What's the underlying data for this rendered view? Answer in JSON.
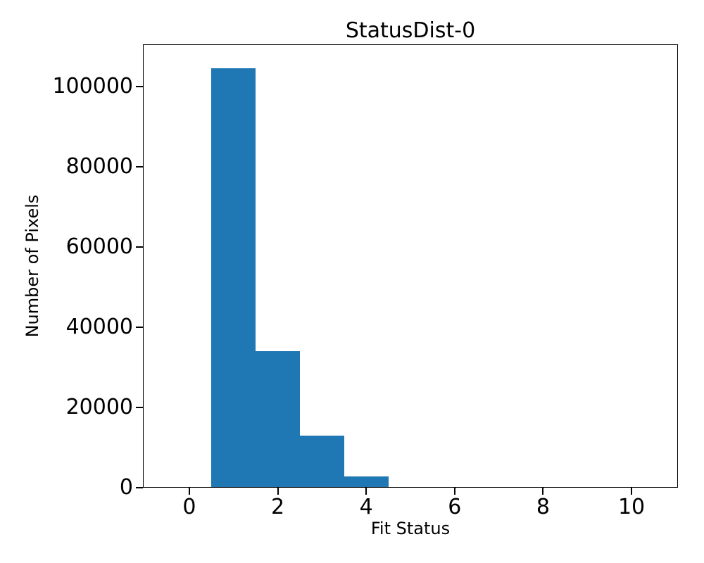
{
  "chart_data": {
    "type": "bar",
    "subtype": "histogram",
    "title": "StatusDist-0",
    "xlabel": "Fit Status",
    "ylabel": "Number of Pixels",
    "categories": [
      0,
      1,
      2,
      3,
      4,
      5,
      6,
      7,
      8,
      9,
      10
    ],
    "values": [
      0,
      104500,
      34000,
      13000,
      2800,
      0,
      0,
      0,
      0,
      0,
      0
    ],
    "bar_width": 1.0,
    "bar_color": "#1f77b4",
    "xlim": [
      -1.05,
      11.05
    ],
    "ylim": [
      0,
      110500
    ],
    "xticks": [
      0,
      2,
      4,
      6,
      8,
      10
    ],
    "yticks": [
      0,
      20000,
      40000,
      60000,
      80000,
      100000
    ],
    "grid": false,
    "legend_position": "none",
    "background_color": "#ffffff",
    "text_color": "#000000"
  }
}
